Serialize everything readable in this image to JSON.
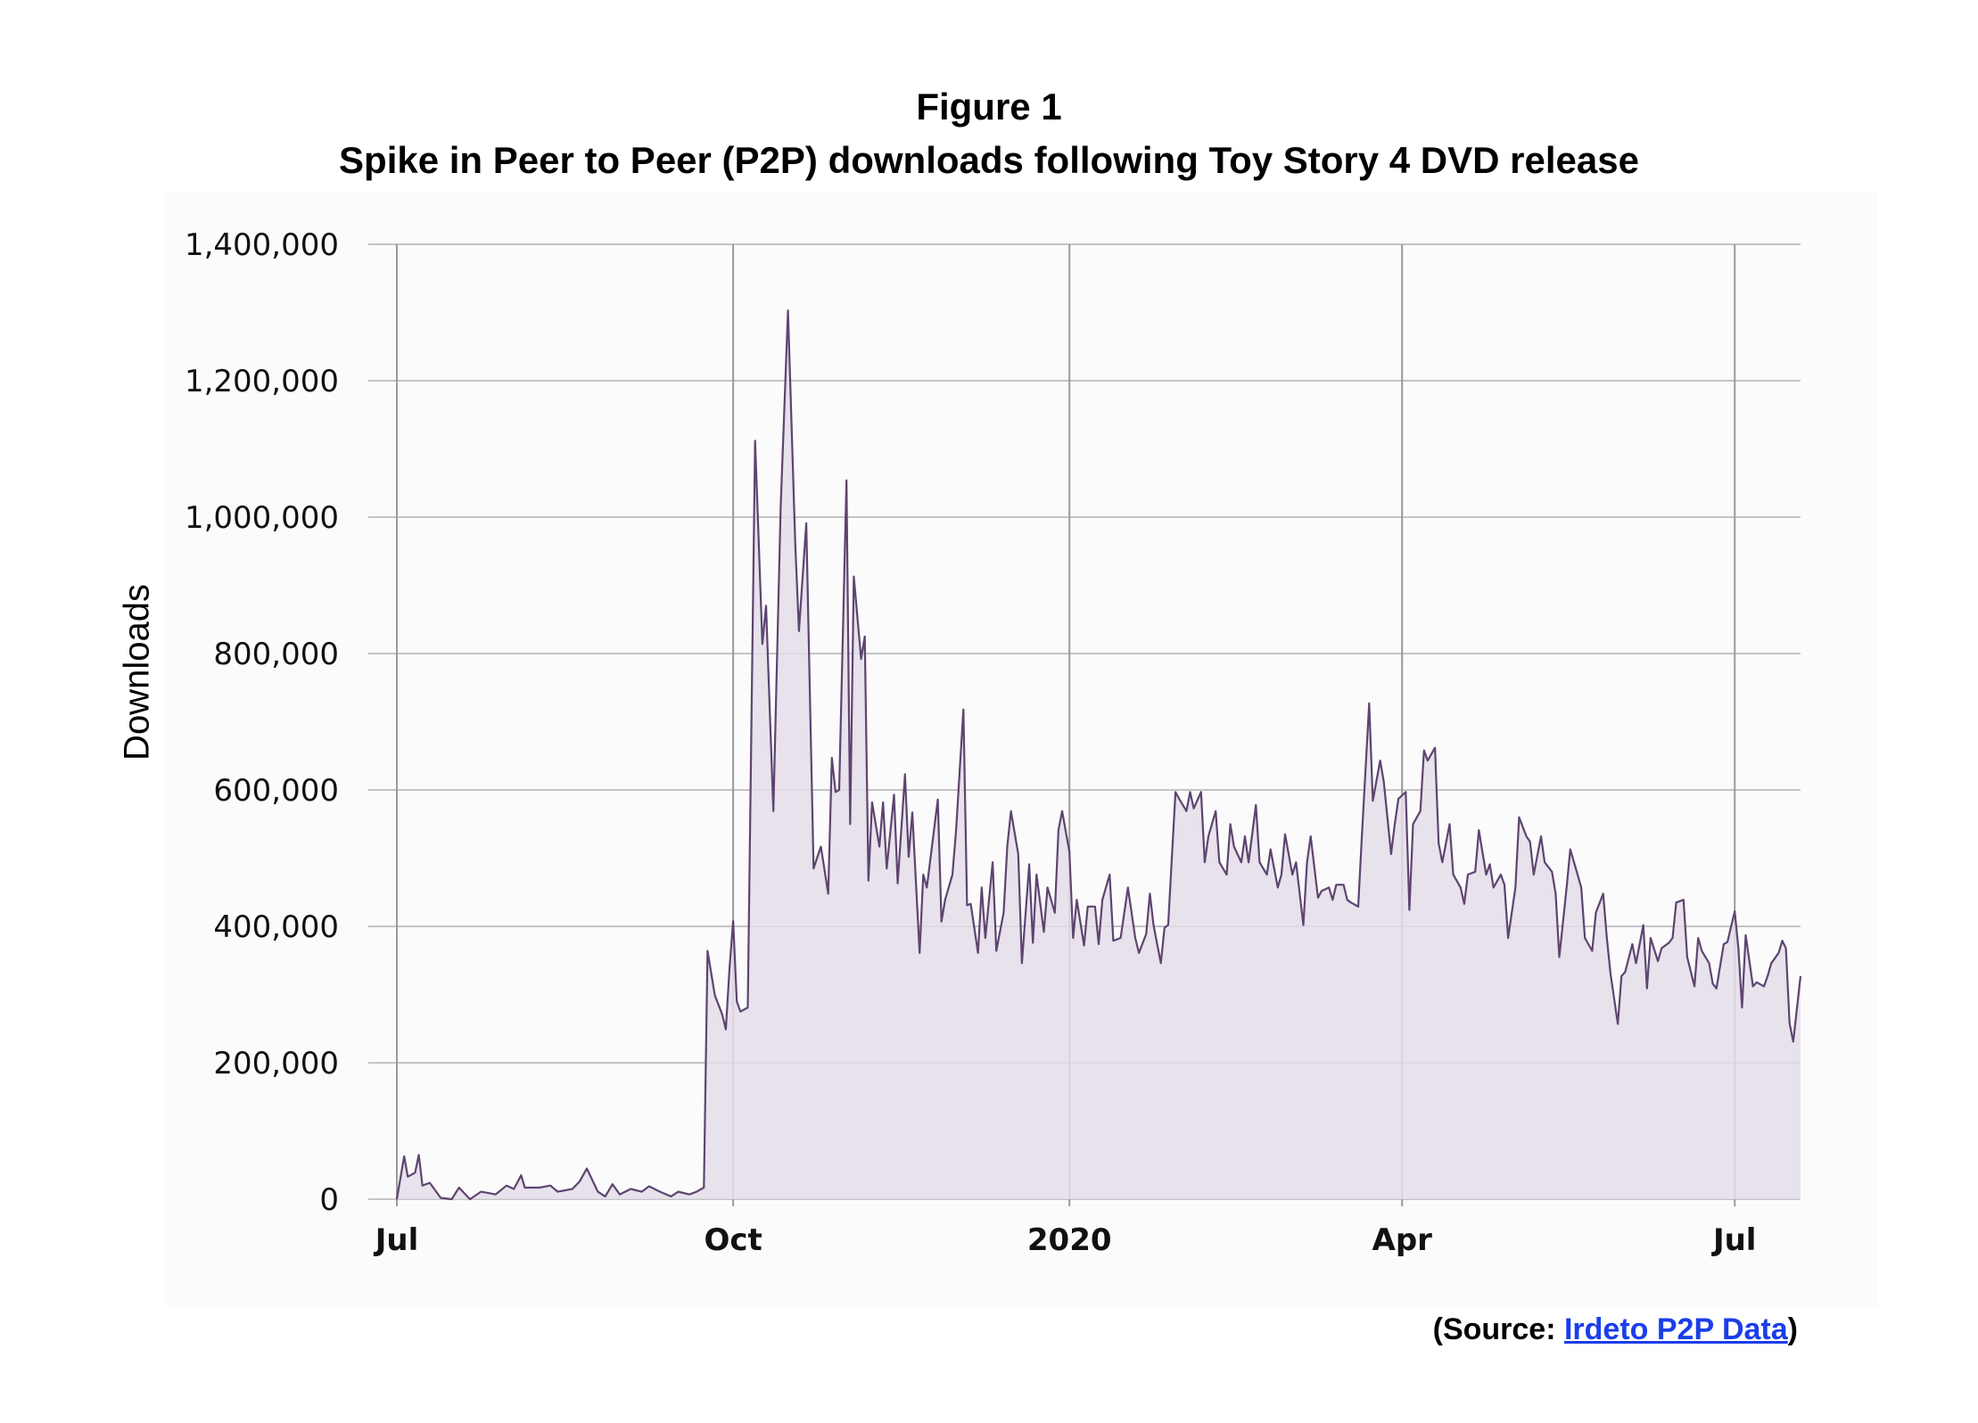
{
  "chart_data": {
    "type": "area",
    "title": "Figure 1",
    "subtitle": "Spike in Peer to Peer (P2P) downloads following Toy Story 4 DVD release",
    "xlabel": "",
    "ylabel": "Downloads",
    "x_unit": "days since 1 Jul 2019",
    "y_unit": "thousands of downloads",
    "ylim": [
      0,
      1400000
    ],
    "xlim": [
      0,
      384
    ],
    "grid": true,
    "y_ticks": [
      0,
      200000,
      400000,
      600000,
      800000,
      1000000,
      1200000,
      1400000
    ],
    "y_tick_labels": [
      "0",
      "200,000",
      "400,000",
      "600,000",
      "800,000",
      "1,000,000",
      "1,200,000",
      "1,400,000"
    ],
    "x_ticks": [
      0,
      92,
      184,
      275,
      366
    ],
    "x_tick_labels": [
      "Jul",
      "Oct",
      "2020",
      "Apr",
      "Jul"
    ],
    "line_color": "#5e4470",
    "fill_color": "#e3dde8",
    "grid_color": "#c4c4c4",
    "points": [
      [
        0,
        0
      ],
      [
        2,
        63
      ],
      [
        3,
        33
      ],
      [
        5,
        39
      ],
      [
        6,
        65
      ],
      [
        7,
        20
      ],
      [
        9,
        24
      ],
      [
        12,
        2
      ],
      [
        15,
        0
      ],
      [
        17,
        17
      ],
      [
        20,
        0
      ],
      [
        23,
        11
      ],
      [
        27,
        7
      ],
      [
        30,
        20
      ],
      [
        32,
        15
      ],
      [
        34,
        35
      ],
      [
        35,
        17
      ],
      [
        39,
        17
      ],
      [
        42,
        20
      ],
      [
        44,
        11
      ],
      [
        48,
        15
      ],
      [
        50,
        26
      ],
      [
        52,
        45
      ],
      [
        55,
        11
      ],
      [
        57,
        4
      ],
      [
        59,
        22
      ],
      [
        61,
        7
      ],
      [
        64,
        15
      ],
      [
        67,
        11
      ],
      [
        69,
        19
      ],
      [
        72,
        11
      ],
      [
        75,
        4
      ],
      [
        77,
        11
      ],
      [
        80,
        7
      ],
      [
        82,
        11
      ],
      [
        84,
        17
      ],
      [
        85,
        364
      ],
      [
        87,
        299
      ],
      [
        89,
        271
      ],
      [
        90,
        249
      ],
      [
        91,
        338
      ],
      [
        92,
        408
      ],
      [
        93,
        290
      ],
      [
        94,
        275
      ],
      [
        96,
        281
      ],
      [
        98,
        1112
      ],
      [
        100,
        814
      ],
      [
        101,
        870
      ],
      [
        103,
        569
      ],
      [
        105,
        1015
      ],
      [
        107,
        1303
      ],
      [
        109,
        959
      ],
      [
        110,
        833
      ],
      [
        112,
        991
      ],
      [
        114,
        485
      ],
      [
        116,
        517
      ],
      [
        118,
        448
      ],
      [
        119,
        647
      ],
      [
        120,
        597
      ],
      [
        121,
        600
      ],
      [
        123,
        1054
      ],
      [
        124,
        550
      ],
      [
        125,
        913
      ],
      [
        127,
        792
      ],
      [
        128,
        825
      ],
      [
        129,
        467
      ],
      [
        130,
        582
      ],
      [
        132,
        517
      ],
      [
        133,
        582
      ],
      [
        134,
        485
      ],
      [
        136,
        593
      ],
      [
        137,
        463
      ],
      [
        139,
        623
      ],
      [
        140,
        502
      ],
      [
        141,
        567
      ],
      [
        143,
        361
      ],
      [
        144,
        476
      ],
      [
        145,
        457
      ],
      [
        148,
        586
      ],
      [
        149,
        407
      ],
      [
        150,
        439
      ],
      [
        152,
        476
      ],
      [
        153,
        541
      ],
      [
        155,
        718
      ],
      [
        156,
        431
      ],
      [
        157,
        433
      ],
      [
        159,
        361
      ],
      [
        160,
        457
      ],
      [
        161,
        383
      ],
      [
        163,
        494
      ],
      [
        164,
        364
      ],
      [
        166,
        420
      ],
      [
        167,
        517
      ],
      [
        168,
        569
      ],
      [
        170,
        506
      ],
      [
        171,
        346
      ],
      [
        173,
        491
      ],
      [
        174,
        376
      ],
      [
        175,
        476
      ],
      [
        177,
        392
      ],
      [
        178,
        457
      ],
      [
        180,
        420
      ],
      [
        181,
        541
      ],
      [
        182,
        569
      ],
      [
        184,
        509
      ],
      [
        185,
        383
      ],
      [
        186,
        439
      ],
      [
        188,
        372
      ],
      [
        189,
        429
      ],
      [
        191,
        429
      ],
      [
        192,
        374
      ],
      [
        193,
        439
      ],
      [
        195,
        476
      ],
      [
        196,
        379
      ],
      [
        198,
        383
      ],
      [
        199,
        420
      ],
      [
        200,
        457
      ],
      [
        202,
        383
      ],
      [
        203,
        361
      ],
      [
        205,
        389
      ],
      [
        206,
        448
      ],
      [
        207,
        402
      ],
      [
        209,
        346
      ],
      [
        210,
        398
      ],
      [
        211,
        402
      ],
      [
        213,
        597
      ],
      [
        214,
        587
      ],
      [
        216,
        569
      ],
      [
        217,
        597
      ],
      [
        218,
        573
      ],
      [
        220,
        597
      ],
      [
        221,
        494
      ],
      [
        222,
        532
      ],
      [
        224,
        569
      ],
      [
        225,
        494
      ],
      [
        227,
        476
      ],
      [
        228,
        550
      ],
      [
        229,
        517
      ],
      [
        231,
        494
      ],
      [
        232,
        532
      ],
      [
        233,
        494
      ],
      [
        235,
        578
      ],
      [
        236,
        494
      ],
      [
        238,
        476
      ],
      [
        239,
        513
      ],
      [
        241,
        457
      ],
      [
        242,
        476
      ],
      [
        243,
        535
      ],
      [
        245,
        476
      ],
      [
        246,
        494
      ],
      [
        248,
        402
      ],
      [
        249,
        494
      ],
      [
        250,
        532
      ],
      [
        252,
        442
      ],
      [
        253,
        452
      ],
      [
        255,
        457
      ],
      [
        256,
        439
      ],
      [
        257,
        461
      ],
      [
        259,
        461
      ],
      [
        260,
        439
      ],
      [
        261,
        435
      ],
      [
        263,
        429
      ],
      [
        264,
        532
      ],
      [
        266,
        727
      ],
      [
        267,
        584
      ],
      [
        269,
        643
      ],
      [
        270,
        612
      ],
      [
        272,
        506
      ],
      [
        273,
        550
      ],
      [
        274,
        587
      ],
      [
        276,
        597
      ],
      [
        277,
        424
      ],
      [
        278,
        550
      ],
      [
        280,
        569
      ],
      [
        281,
        658
      ],
      [
        282,
        643
      ],
      [
        284,
        662
      ],
      [
        285,
        522
      ],
      [
        286,
        494
      ],
      [
        288,
        550
      ],
      [
        289,
        476
      ],
      [
        291,
        457
      ],
      [
        292,
        433
      ],
      [
        293,
        476
      ],
      [
        295,
        480
      ],
      [
        296,
        541
      ],
      [
        298,
        476
      ],
      [
        299,
        491
      ],
      [
        300,
        457
      ],
      [
        302,
        476
      ],
      [
        303,
        461
      ],
      [
        304,
        383
      ],
      [
        306,
        457
      ],
      [
        307,
        560
      ],
      [
        309,
        532
      ],
      [
        310,
        524
      ],
      [
        311,
        476
      ],
      [
        313,
        532
      ],
      [
        314,
        494
      ],
      [
        316,
        480
      ],
      [
        317,
        448
      ],
      [
        318,
        355
      ],
      [
        320,
        457
      ],
      [
        321,
        513
      ],
      [
        323,
        476
      ],
      [
        324,
        457
      ],
      [
        325,
        383
      ],
      [
        327,
        364
      ],
      [
        328,
        420
      ],
      [
        330,
        448
      ],
      [
        331,
        383
      ],
      [
        332,
        331
      ],
      [
        334,
        257
      ],
      [
        335,
        327
      ],
      [
        336,
        333
      ],
      [
        338,
        374
      ],
      [
        339,
        346
      ],
      [
        341,
        402
      ],
      [
        342,
        309
      ],
      [
        343,
        383
      ],
      [
        345,
        349
      ],
      [
        346,
        368
      ],
      [
        348,
        376
      ],
      [
        349,
        383
      ],
      [
        350,
        435
      ],
      [
        352,
        439
      ],
      [
        353,
        355
      ],
      [
        355,
        312
      ],
      [
        356,
        383
      ],
      [
        357,
        364
      ],
      [
        359,
        346
      ],
      [
        360,
        316
      ],
      [
        361,
        309
      ],
      [
        363,
        374
      ],
      [
        364,
        377
      ],
      [
        366,
        422
      ],
      [
        367,
        368
      ],
      [
        368,
        281
      ],
      [
        369,
        387
      ],
      [
        371,
        312
      ],
      [
        372,
        318
      ],
      [
        374,
        312
      ],
      [
        375,
        327
      ],
      [
        376,
        346
      ],
      [
        378,
        361
      ],
      [
        379,
        379
      ],
      [
        380,
        368
      ],
      [
        381,
        258
      ],
      [
        382,
        231
      ],
      [
        384,
        327
      ]
    ]
  },
  "source": {
    "prefix": "(Source: ",
    "link_text": "Irdeto P2P Data",
    "suffix": ")"
  }
}
